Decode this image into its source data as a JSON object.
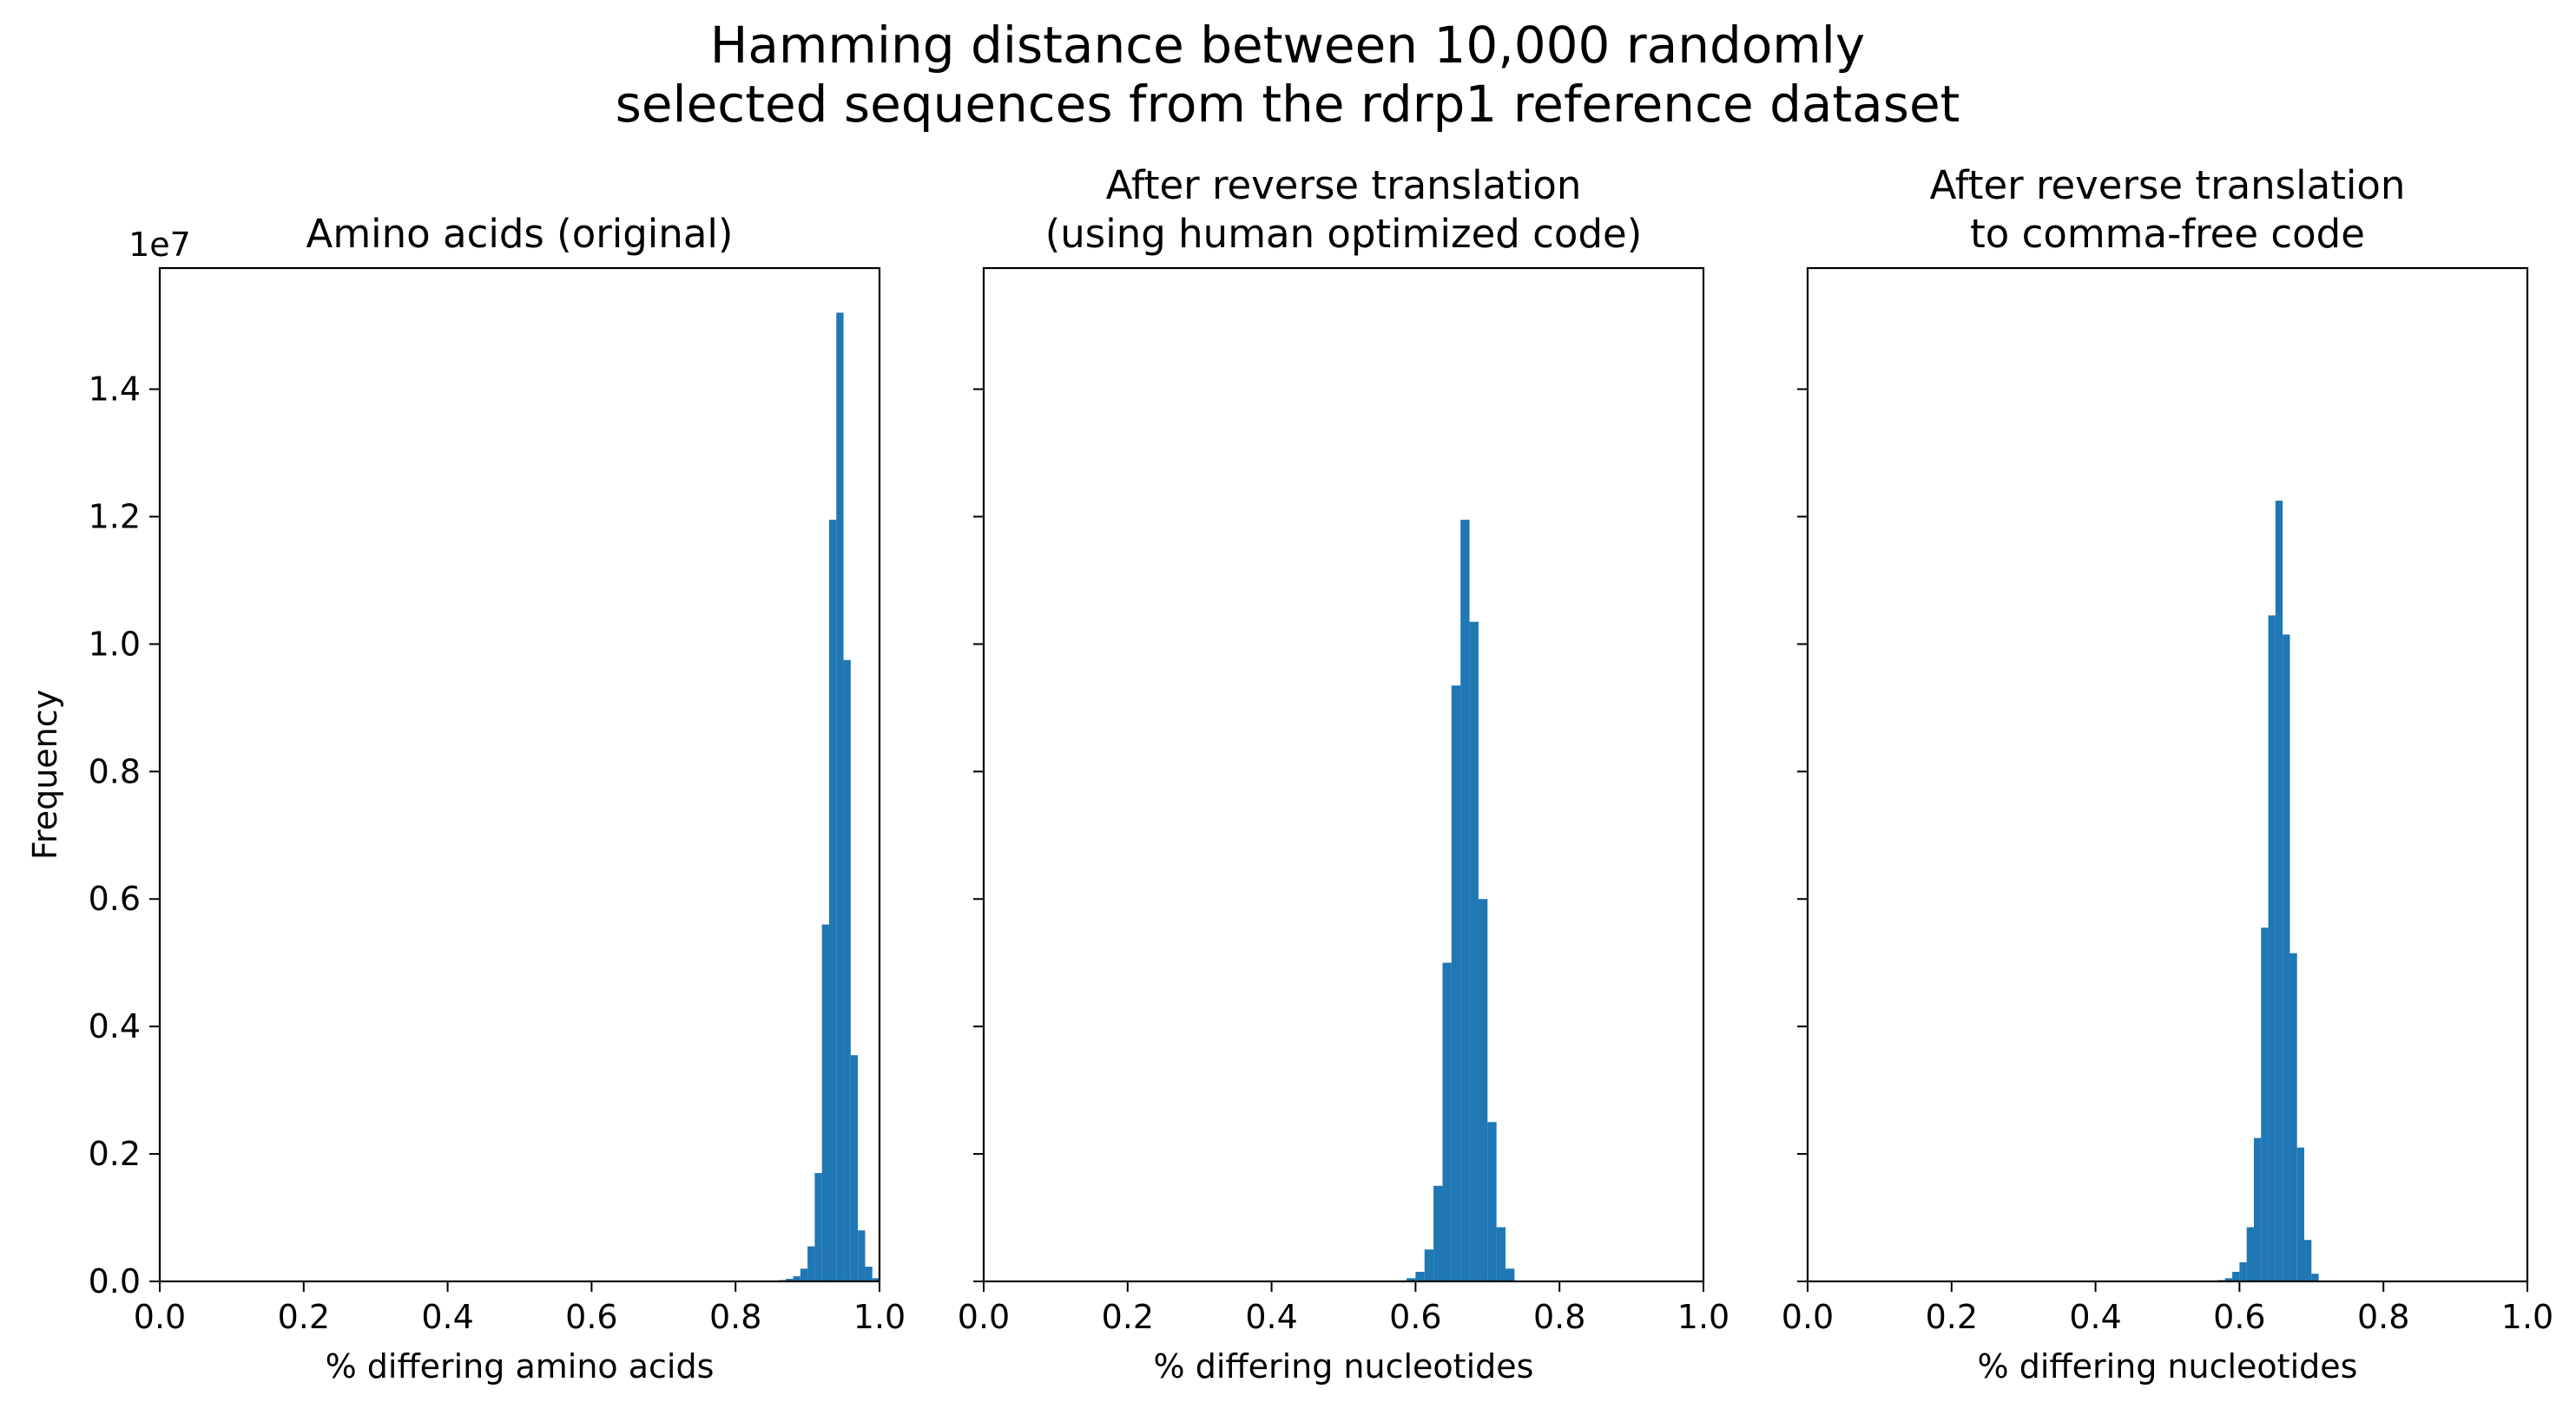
{
  "figure": {
    "suptitle_lines": [
      "Hamming distance between 10,000 randomly",
      "selected sequences from the rdrp1 reference dataset"
    ],
    "y_offset_text": "1e7",
    "bar_color": "#1f77b4"
  },
  "chart_data": [
    {
      "type": "bar",
      "title_lines": [
        "Amino acids (original)"
      ],
      "xlabel": "% differing amino acids",
      "ylabel": "Frequency",
      "xlim": [
        0.0,
        1.0
      ],
      "ylim": [
        0,
        1.59
      ],
      "y_scale_factor": 10000000,
      "y_offset_text": "1e7",
      "xticks": [
        "0.0",
        "0.2",
        "0.4",
        "0.6",
        "0.8",
        "1.0"
      ],
      "yticks": [
        "0.0",
        "0.2",
        "0.4",
        "0.6",
        "0.8",
        "1.0",
        "1.2",
        "1.4"
      ],
      "show_ytick_labels": true,
      "bin_width": 0.01,
      "bin_starts": [
        0.86,
        0.87,
        0.88,
        0.89,
        0.9,
        0.91,
        0.92,
        0.93,
        0.94,
        0.95,
        0.96,
        0.97,
        0.98,
        0.99
      ],
      "values": [
        0.002,
        0.004,
        0.008,
        0.02,
        0.055,
        0.17,
        0.56,
        1.195,
        1.52,
        0.975,
        0.355,
        0.08,
        0.023,
        0.005
      ]
    },
    {
      "type": "bar",
      "title_lines": [
        "After reverse translation",
        "(using human optimized code)"
      ],
      "xlabel": "% differing nucleotides",
      "ylabel": "",
      "xlim": [
        0.0,
        1.0
      ],
      "ylim": [
        0,
        1.59
      ],
      "y_scale_factor": 10000000,
      "xticks": [
        "0.0",
        "0.2",
        "0.4",
        "0.6",
        "0.8",
        "1.0"
      ],
      "yticks": [
        "0.0",
        "0.2",
        "0.4",
        "0.6",
        "0.8",
        "1.0",
        "1.2",
        "1.4"
      ],
      "show_ytick_labels": false,
      "bin_width": 0.0125,
      "bin_starts": [
        0.575,
        0.5875,
        0.6,
        0.6125,
        0.625,
        0.6375,
        0.65,
        0.6625,
        0.675,
        0.6875,
        0.7,
        0.7125,
        0.725
      ],
      "values": [
        0.001,
        0.005,
        0.015,
        0.05,
        0.15,
        0.5,
        0.935,
        1.195,
        1.035,
        0.6,
        0.25,
        0.085,
        0.02
      ]
    },
    {
      "type": "bar",
      "title_lines": [
        "After reverse translation",
        "to comma-free code"
      ],
      "xlabel": "% differing nucleotides",
      "ylabel": "",
      "xlim": [
        0.0,
        1.0
      ],
      "ylim": [
        0,
        1.59
      ],
      "y_scale_factor": 10000000,
      "xticks": [
        "0.0",
        "0.2",
        "0.4",
        "0.6",
        "0.8",
        "1.0"
      ],
      "yticks": [
        "0.0",
        "0.2",
        "0.4",
        "0.6",
        "0.8",
        "1.0",
        "1.2",
        "1.4"
      ],
      "show_ytick_labels": false,
      "bin_width": 0.01,
      "bin_starts": [
        0.56,
        0.57,
        0.58,
        0.59,
        0.6,
        0.61,
        0.62,
        0.63,
        0.64,
        0.65,
        0.66,
        0.67,
        0.68,
        0.69,
        0.7
      ],
      "values": [
        0.001,
        0.002,
        0.005,
        0.015,
        0.03,
        0.085,
        0.225,
        0.555,
        1.045,
        1.225,
        1.015,
        0.515,
        0.21,
        0.065,
        0.012
      ]
    }
  ]
}
